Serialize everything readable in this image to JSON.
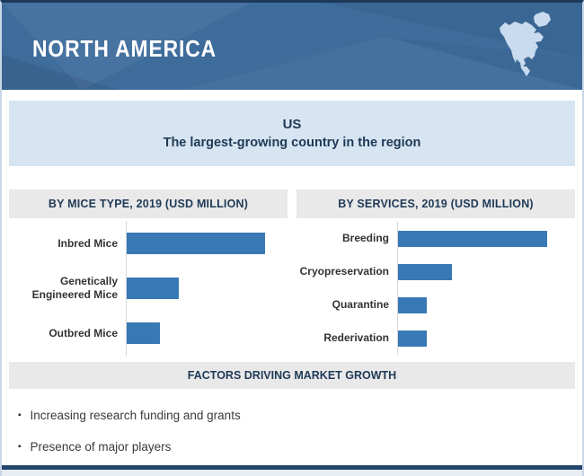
{
  "header": {
    "title": "NORTH AMERICA"
  },
  "highlight": {
    "country": "US",
    "subtitle": "The largest-growing country in the region"
  },
  "chart_data": [
    {
      "type": "bar",
      "orientation": "horizontal",
      "title": "BY MICE TYPE, 2019 (USD MILLION)",
      "categories": [
        "Inbred Mice",
        "Genetically Engineered Mice",
        "Outbred Mice"
      ],
      "values_relative": [
        100,
        38,
        24
      ],
      "data_labels_shown": false,
      "axis_labels_shown": false,
      "legend": "none",
      "grid": "off",
      "bar_color": "#3879B5",
      "max_bar_pct": 90
    },
    {
      "type": "bar",
      "orientation": "horizontal",
      "title": "BY SERVICES, 2019 (USD MILLION)",
      "categories": [
        "Breeding",
        "Cryopreservation",
        "Quarantine",
        "Rederivation"
      ],
      "values_relative": [
        100,
        36,
        19,
        19
      ],
      "data_labels_shown": false,
      "axis_labels_shown": false,
      "legend": "none",
      "grid": "off",
      "bar_color": "#3879B5",
      "max_bar_pct": 88
    }
  ],
  "factors": {
    "title": "FACTORS DRIVING MARKET GROWTH",
    "items": [
      "Increasing research funding and grants",
      "Presence of major players"
    ],
    "bullet_glyph": "▪"
  },
  "colors": {
    "header_blue": "#3E6C9B",
    "bar_blue": "#3879B5",
    "highlight_box_blue": "#D7E4F1",
    "band_gray": "#E9E9E9",
    "navy_text": "#1F3A57",
    "bottom_rule_navy": "#24466B",
    "map_fill_light_blue": "#C9DCEF",
    "top_border_navy": "#1C3A5B"
  }
}
